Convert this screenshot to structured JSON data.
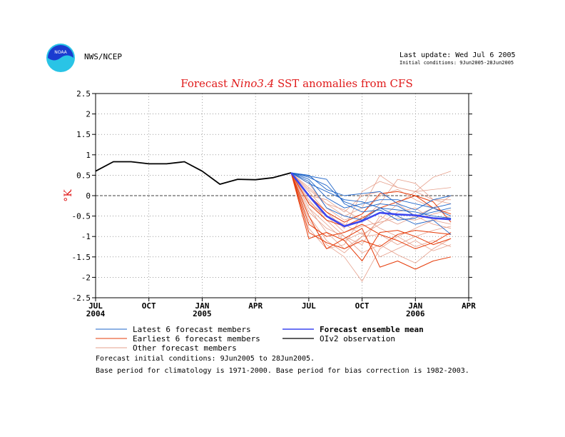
{
  "header": {
    "agency": "NWS/NCEP",
    "last_update": "Last update: Wed Jul 6 2005",
    "initial_conditions": "Initial conditions: 9Jun2005-28Jun2005"
  },
  "logo": {
    "icon": "noaa-logo-icon",
    "text": "NOAA",
    "colors": {
      "outer": "#29c4e6",
      "inner": "#1a3bd0"
    }
  },
  "chart_data": {
    "type": "line",
    "title_parts": [
      "Forecast ",
      "Nino3.4",
      " SST anomalies from CFS"
    ],
    "ylabel": "°K",
    "ylim": [
      -2.5,
      2.5
    ],
    "yticks": [
      2.5,
      2,
      1.5,
      1,
      0.5,
      0,
      -0.5,
      -1,
      -1.5,
      -2,
      -2.5
    ],
    "ytick_labels": [
      "2.5",
      "2",
      "1.5",
      "1",
      "0.5",
      "0",
      "-0.5",
      "-1",
      "-1.5",
      "-2",
      "-2.5"
    ],
    "xlim": [
      0,
      21
    ],
    "xticks": [
      {
        "month": 0,
        "label": "JUL",
        "year": "2004"
      },
      {
        "month": 3,
        "label": "OCT",
        "year": ""
      },
      {
        "month": 6,
        "label": "JAN",
        "year": "2005"
      },
      {
        "month": 9,
        "label": "APR",
        "year": ""
      },
      {
        "month": 12,
        "label": "JUL",
        "year": ""
      },
      {
        "month": 15,
        "label": "OCT",
        "year": ""
      },
      {
        "month": 18,
        "label": "JAN",
        "year": "2006"
      },
      {
        "month": 21,
        "label": "APR",
        "year": ""
      }
    ],
    "grid": true,
    "zero_line": true,
    "colors": {
      "latest": "#1e64c8",
      "earliest": "#e63c0a",
      "other": "#e6a08c",
      "mean": "#3c46f0",
      "observation": "#000000"
    },
    "observation": {
      "x": [
        0,
        1,
        2,
        3,
        4,
        5,
        6,
        7,
        8,
        9,
        10,
        11
      ],
      "y": [
        0.6,
        0.83,
        0.83,
        0.78,
        0.78,
        0.83,
        0.6,
        0.28,
        0.4,
        0.39,
        0.44,
        0.56
      ]
    },
    "ensemble_mean": {
      "x": [
        11,
        12,
        13,
        14,
        15,
        16,
        17,
        18,
        19,
        20
      ],
      "y": [
        0.56,
        0.0,
        -0.5,
        -0.75,
        -0.62,
        -0.42,
        -0.46,
        -0.48,
        -0.55,
        -0.58
      ]
    },
    "latest_members": [
      {
        "x": [
          11,
          12,
          13,
          14,
          15,
          16,
          17,
          18,
          19,
          20
        ],
        "y": [
          0.56,
          0.48,
          0.4,
          -0.2,
          -0.4,
          -0.35,
          -0.6,
          -0.55,
          -0.3,
          -0.2
        ]
      },
      {
        "x": [
          11,
          12,
          13,
          14,
          15,
          16,
          17,
          18,
          19,
          20
        ],
        "y": [
          0.56,
          0.5,
          0.15,
          0.0,
          0.05,
          0.1,
          -0.2,
          -0.35,
          -0.1,
          0.0
        ]
      },
      {
        "x": [
          11,
          12,
          13,
          14,
          15,
          16,
          17,
          18,
          19,
          20
        ],
        "y": [
          0.56,
          0.4,
          -0.05,
          -0.3,
          -0.2,
          -0.1,
          -0.1,
          -0.2,
          -0.3,
          -0.5
        ]
      },
      {
        "x": [
          11,
          12,
          13,
          14,
          15,
          16,
          17,
          18,
          19,
          20
        ],
        "y": [
          0.56,
          0.35,
          -0.3,
          -0.5,
          -0.6,
          -0.3,
          -0.5,
          -0.7,
          -0.6,
          -0.95
        ]
      },
      {
        "x": [
          11,
          12,
          13,
          14,
          15,
          16,
          17,
          18,
          19,
          20
        ],
        "y": [
          0.56,
          0.3,
          0.1,
          -0.1,
          -0.15,
          -0.3,
          -0.35,
          -0.4,
          -0.5,
          -0.55
        ]
      },
      {
        "x": [
          11,
          12,
          13,
          14,
          15,
          16,
          17,
          18,
          19,
          20
        ],
        "y": [
          0.56,
          0.45,
          0.25,
          -0.15,
          -0.3,
          -0.2,
          -0.25,
          -0.5,
          -0.4,
          -0.3
        ]
      }
    ],
    "earliest_members": [
      {
        "x": [
          11,
          12,
          13,
          14,
          15,
          16,
          17,
          18,
          19,
          20
        ],
        "y": [
          0.56,
          -1.05,
          -0.9,
          -1.1,
          -1.6,
          -0.9,
          -0.85,
          -1.0,
          -1.2,
          -1.05
        ]
      },
      {
        "x": [
          11,
          12,
          13,
          14,
          15,
          16,
          17,
          18,
          19,
          20
        ],
        "y": [
          0.56,
          -0.5,
          -1.3,
          -1.05,
          -0.8,
          -1.75,
          -1.6,
          -1.8,
          -1.6,
          -1.5
        ]
      },
      {
        "x": [
          11,
          12,
          13,
          14,
          15,
          16,
          17,
          18,
          19,
          20
        ],
        "y": [
          0.56,
          -0.2,
          -0.6,
          -0.75,
          -0.55,
          -0.3,
          -0.15,
          0.0,
          -0.3,
          -0.45
        ]
      },
      {
        "x": [
          11,
          12,
          13,
          14,
          15,
          16,
          17,
          18,
          19,
          20
        ],
        "y": [
          0.56,
          -0.7,
          -1.0,
          -0.9,
          -0.7,
          -0.95,
          -1.1,
          -1.3,
          -1.15,
          -0.9
        ]
      },
      {
        "x": [
          11,
          12,
          13,
          14,
          15,
          16,
          17,
          18,
          19,
          20
        ],
        "y": [
          0.56,
          0.0,
          -0.4,
          -0.65,
          -0.45,
          0.05,
          0.1,
          0.0,
          -0.15,
          -0.65
        ]
      },
      {
        "x": [
          11,
          12,
          13,
          14,
          15,
          16,
          17,
          18,
          19,
          20
        ],
        "y": [
          0.56,
          -0.9,
          -1.15,
          -1.3,
          -1.1,
          -1.25,
          -0.95,
          -0.85,
          -0.9,
          -0.95
        ]
      }
    ],
    "other_members": [
      {
        "x": [
          11,
          12,
          13,
          14,
          15,
          16,
          17,
          18,
          19,
          20
        ],
        "y": [
          0.56,
          0.1,
          -0.4,
          -0.8,
          0.1,
          0.35,
          0.2,
          0.1,
          0.45,
          0.6
        ]
      },
      {
        "x": [
          11,
          12,
          13,
          14,
          15,
          16,
          17,
          18,
          19,
          20
        ],
        "y": [
          0.56,
          -0.3,
          -0.9,
          -1.3,
          -1.0,
          -0.6,
          -0.2,
          0.1,
          0.15,
          0.2
        ]
      },
      {
        "x": [
          11,
          12,
          13,
          14,
          15,
          16,
          17,
          18,
          19,
          20
        ],
        "y": [
          0.56,
          -0.6,
          -1.2,
          -1.5,
          -2.1,
          -1.3,
          -1.0,
          -0.8,
          -0.6,
          -0.5
        ]
      },
      {
        "x": [
          11,
          12,
          13,
          14,
          15,
          16,
          17,
          18,
          19,
          20
        ],
        "y": [
          0.56,
          0.2,
          -0.2,
          -0.5,
          -0.3,
          0.5,
          0.2,
          0.1,
          -0.1,
          -0.2
        ]
      },
      {
        "x": [
          11,
          12,
          13,
          14,
          15,
          16,
          17,
          18,
          19,
          20
        ],
        "y": [
          0.56,
          -0.1,
          -0.6,
          -1.0,
          -1.4,
          -1.2,
          -1.45,
          -1.65,
          -1.3,
          -1.05
        ]
      },
      {
        "x": [
          11,
          12,
          13,
          14,
          15,
          16,
          17,
          18,
          19,
          20
        ],
        "y": [
          0.56,
          -0.4,
          -0.8,
          -1.0,
          -1.2,
          -0.5,
          -0.7,
          -0.5,
          -0.7,
          -0.8
        ]
      },
      {
        "x": [
          11,
          12,
          13,
          14,
          15,
          16,
          17,
          18,
          19,
          20
        ],
        "y": [
          0.56,
          0.0,
          -0.1,
          -0.4,
          0.0,
          0.1,
          -0.2,
          -0.5,
          -0.3,
          0.0
        ]
      },
      {
        "x": [
          11,
          12,
          13,
          14,
          15,
          16,
          17,
          18,
          19,
          20
        ],
        "y": [
          0.56,
          -0.8,
          -1.3,
          -1.2,
          -0.5,
          -0.8,
          -1.0,
          -1.25,
          -1.1,
          -1.25
        ]
      },
      {
        "x": [
          11,
          12,
          13,
          14,
          15,
          16,
          17,
          18,
          19,
          20
        ],
        "y": [
          0.56,
          -0.2,
          -0.5,
          -0.9,
          -0.75,
          -0.65,
          -0.55,
          -0.6,
          -0.45,
          -0.35
        ]
      },
      {
        "x": [
          11,
          12,
          13,
          14,
          15,
          16,
          17,
          18,
          19,
          20
        ],
        "y": [
          0.56,
          0.3,
          -0.3,
          -0.6,
          -0.45,
          0.0,
          0.15,
          -0.1,
          -0.3,
          -0.5
        ]
      },
      {
        "x": [
          11,
          12,
          13,
          14,
          15,
          16,
          17,
          18,
          19,
          20
        ],
        "y": [
          0.56,
          -0.5,
          -1.1,
          -1.4,
          -1.0,
          -0.95,
          -1.2,
          -1.0,
          -0.85,
          -0.75
        ]
      },
      {
        "x": [
          11,
          12,
          13,
          14,
          15,
          16,
          17,
          18,
          19,
          20
        ],
        "y": [
          0.56,
          0.15,
          -0.2,
          -0.35,
          -0.6,
          -0.2,
          0.4,
          0.3,
          -0.1,
          -0.1
        ]
      },
      {
        "x": [
          11,
          12,
          13,
          14,
          15,
          16,
          17,
          18,
          19,
          20
        ],
        "y": [
          0.56,
          -0.3,
          -0.7,
          -1.1,
          -0.9,
          -1.5,
          -1.3,
          -1.1,
          -1.35,
          -1.2
        ]
      },
      {
        "x": [
          11,
          12,
          13,
          14,
          15,
          16,
          17,
          18,
          19,
          20
        ],
        "y": [
          0.56,
          -0.15,
          -0.5,
          -0.7,
          -0.95,
          -0.7,
          -0.4,
          -0.3,
          -0.6,
          -0.7
        ]
      }
    ],
    "legend": {
      "latest": "Latest 6 forecast members",
      "earliest": "Earliest 6 forecast members",
      "other": "Other forecast members",
      "mean": "Forecast ensemble mean",
      "observation": "OIv2 observation"
    }
  },
  "footnotes": {
    "line1": "Forecast initial conditions: 9Jun2005 to 28Jun2005.",
    "line2": "Base period for climatology is 1971-2000. Base period for bias correction is 1982-2003."
  }
}
